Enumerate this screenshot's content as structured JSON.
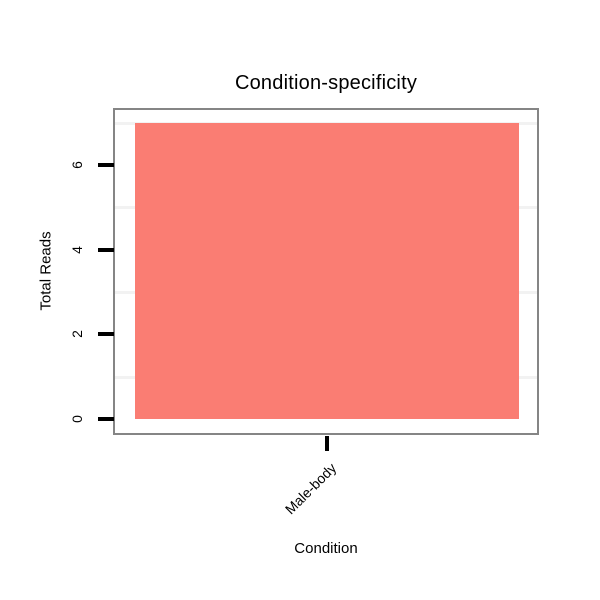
{
  "chart_data": {
    "type": "bar",
    "title": "Condition-specificity",
    "xlabel": "Condition",
    "ylabel": "Total Reads",
    "categories": [
      "Male-body"
    ],
    "values": [
      7
    ],
    "ylim": [
      0,
      7.3
    ],
    "yticks": [
      0,
      2,
      4,
      6
    ],
    "ytick_labels": [
      "0",
      "2",
      "4",
      "6"
    ],
    "minor_gridlines": [
      1,
      3,
      5,
      7
    ],
    "grid": "minor-horizontal-only",
    "legend_position": "none",
    "colors": {
      "bar_fill": "#FA7D73",
      "panel_border": "#858585",
      "minor_gridline": "#F2F2F2",
      "axis_tick": "#000000",
      "text": "#000000",
      "background": "#FFFFFF"
    }
  }
}
